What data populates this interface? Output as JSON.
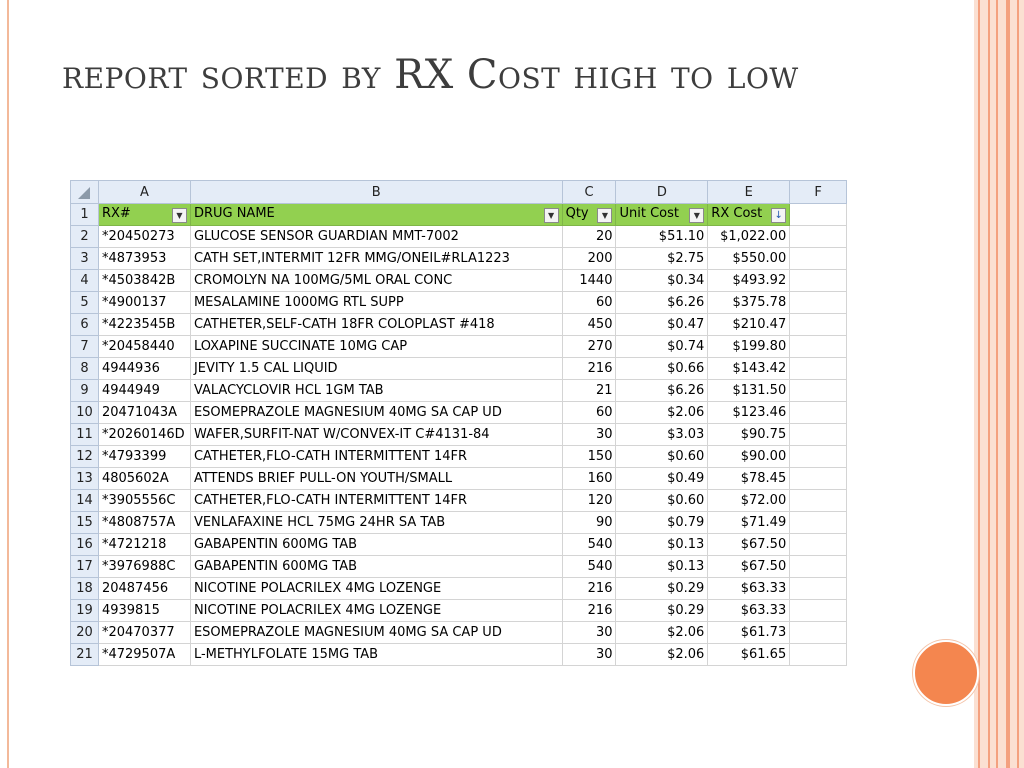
{
  "title": "report sorted by RX Cost high to low",
  "colors": {
    "header_fill": "#92d050",
    "accent": "#f4864f"
  },
  "sheet": {
    "column_letters": [
      "A",
      "B",
      "C",
      "D",
      "E",
      "F"
    ],
    "headers": {
      "rx": "RX#",
      "drug": "DRUG NAME",
      "qty": "Qty",
      "unit_cost": "Unit Cost",
      "rx_cost": "RX Cost"
    },
    "filter_icon": "filter-dropdown-icon",
    "sort_icon": "sort-descending-filter-icon",
    "rows": [
      {
        "n": "2",
        "rx": "*20450273",
        "drug": "GLUCOSE SENSOR GUARDIAN MMT-7002",
        "qty": "20",
        "unit": "$51.10",
        "cost": "$1,022.00"
      },
      {
        "n": "3",
        "rx": "*4873953",
        "drug": "CATH SET,INTERMIT 12FR MMG/ONEIL#RLA1223",
        "qty": "200",
        "unit": "$2.75",
        "cost": "$550.00"
      },
      {
        "n": "4",
        "rx": "*4503842B",
        "drug": "CROMOLYN NA 100MG/5ML ORAL CONC",
        "qty": "1440",
        "unit": "$0.34",
        "cost": "$493.92"
      },
      {
        "n": "5",
        "rx": "*4900137",
        "drug": "MESALAMINE 1000MG RTL SUPP",
        "qty": "60",
        "unit": "$6.26",
        "cost": "$375.78"
      },
      {
        "n": "6",
        "rx": "*4223545B",
        "drug": "CATHETER,SELF-CATH 18FR COLOPLAST #418",
        "qty": "450",
        "unit": "$0.47",
        "cost": "$210.47"
      },
      {
        "n": "7",
        "rx": "*20458440",
        "drug": "LOXAPINE SUCCINATE 10MG CAP",
        "qty": "270",
        "unit": "$0.74",
        "cost": "$199.80"
      },
      {
        "n": "8",
        "rx": "4944936",
        "drug": "JEVITY 1.5 CAL LIQUID",
        "qty": "216",
        "unit": "$0.66",
        "cost": "$143.42"
      },
      {
        "n": "9",
        "rx": "4944949",
        "drug": "VALACYCLOVIR HCL 1GM TAB",
        "qty": "21",
        "unit": "$6.26",
        "cost": "$131.50"
      },
      {
        "n": "10",
        "rx": "20471043A",
        "drug": "ESOMEPRAZOLE MAGNESIUM 40MG SA CAP UD",
        "qty": "60",
        "unit": "$2.06",
        "cost": "$123.46"
      },
      {
        "n": "11",
        "rx": "*20260146D",
        "drug": "WAFER,SURFIT-NAT W/CONVEX-IT C#4131-84",
        "qty": "30",
        "unit": "$3.03",
        "cost": "$90.75"
      },
      {
        "n": "12",
        "rx": "*4793399",
        "drug": "CATHETER,FLO-CATH INTERMITTENT 14FR",
        "qty": "150",
        "unit": "$0.60",
        "cost": "$90.00"
      },
      {
        "n": "13",
        "rx": "4805602A",
        "drug": "ATTENDS BRIEF PULL-ON YOUTH/SMALL",
        "qty": "160",
        "unit": "$0.49",
        "cost": "$78.45"
      },
      {
        "n": "14",
        "rx": "*3905556C",
        "drug": "CATHETER,FLO-CATH INTERMITTENT 14FR",
        "qty": "120",
        "unit": "$0.60",
        "cost": "$72.00"
      },
      {
        "n": "15",
        "rx": "*4808757A",
        "drug": "VENLAFAXINE HCL 75MG 24HR SA TAB",
        "qty": "90",
        "unit": "$0.79",
        "cost": "$71.49"
      },
      {
        "n": "16",
        "rx": "*4721218",
        "drug": "GABAPENTIN 600MG TAB",
        "qty": "540",
        "unit": "$0.13",
        "cost": "$67.50"
      },
      {
        "n": "17",
        "rx": "*3976988C",
        "drug": "GABAPENTIN 600MG TAB",
        "qty": "540",
        "unit": "$0.13",
        "cost": "$67.50"
      },
      {
        "n": "18",
        "rx": "20487456",
        "drug": "NICOTINE POLACRILEX 4MG LOZENGE",
        "qty": "216",
        "unit": "$0.29",
        "cost": "$63.33"
      },
      {
        "n": "19",
        "rx": "4939815",
        "drug": "NICOTINE POLACRILEX 4MG LOZENGE",
        "qty": "216",
        "unit": "$0.29",
        "cost": "$63.33"
      },
      {
        "n": "20",
        "rx": "*20470377",
        "drug": "ESOMEPRAZOLE MAGNESIUM 40MG SA CAP UD",
        "qty": "30",
        "unit": "$2.06",
        "cost": "$61.73"
      },
      {
        "n": "21",
        "rx": "*4729507A",
        "drug": "L-METHYLFOLATE 15MG TAB",
        "qty": "30",
        "unit": "$2.06",
        "cost": "$61.65"
      }
    ]
  }
}
